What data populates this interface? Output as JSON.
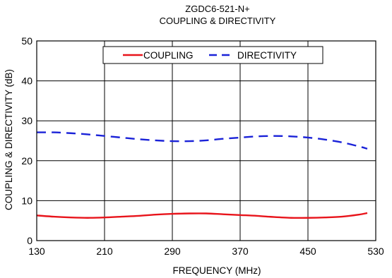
{
  "chart_data": {
    "type": "line",
    "title": "ZGDC6-521-N+",
    "subtitle": "COUPLING & DIRECTIVITY",
    "xlabel": "FREQUENCY (MHz)",
    "ylabel": "COUPLING & DIRECTIVITY (dB)",
    "xlim": [
      130,
      530
    ],
    "ylim": [
      0,
      50
    ],
    "xticks": [
      130,
      210,
      290,
      370,
      450,
      530
    ],
    "yticks": [
      0,
      10,
      20,
      30,
      40,
      50
    ],
    "grid": true,
    "legend_position": "top-center",
    "series": [
      {
        "name": "COUPLING",
        "color": "#e8141b",
        "style": "solid",
        "x": [
          130,
          150,
          170,
          190,
          210,
          230,
          250,
          270,
          290,
          310,
          330,
          350,
          370,
          390,
          410,
          430,
          450,
          470,
          490,
          510,
          520
        ],
        "values": [
          6.3,
          6.0,
          5.8,
          5.7,
          5.8,
          6.0,
          6.2,
          6.5,
          6.7,
          6.8,
          6.8,
          6.6,
          6.4,
          6.2,
          5.9,
          5.7,
          5.7,
          5.8,
          6.0,
          6.5,
          6.9
        ]
      },
      {
        "name": "DIRECTIVITY",
        "color": "#1a22d8",
        "style": "dashed",
        "x": [
          130,
          150,
          170,
          190,
          210,
          230,
          250,
          270,
          290,
          310,
          330,
          350,
          370,
          390,
          410,
          430,
          450,
          470,
          490,
          510,
          520
        ],
        "values": [
          27.1,
          27.1,
          26.9,
          26.6,
          26.2,
          25.8,
          25.4,
          25.1,
          24.9,
          24.9,
          25.1,
          25.5,
          25.8,
          26.1,
          26.2,
          26.1,
          25.8,
          25.3,
          24.6,
          23.6,
          23.0
        ]
      }
    ]
  }
}
